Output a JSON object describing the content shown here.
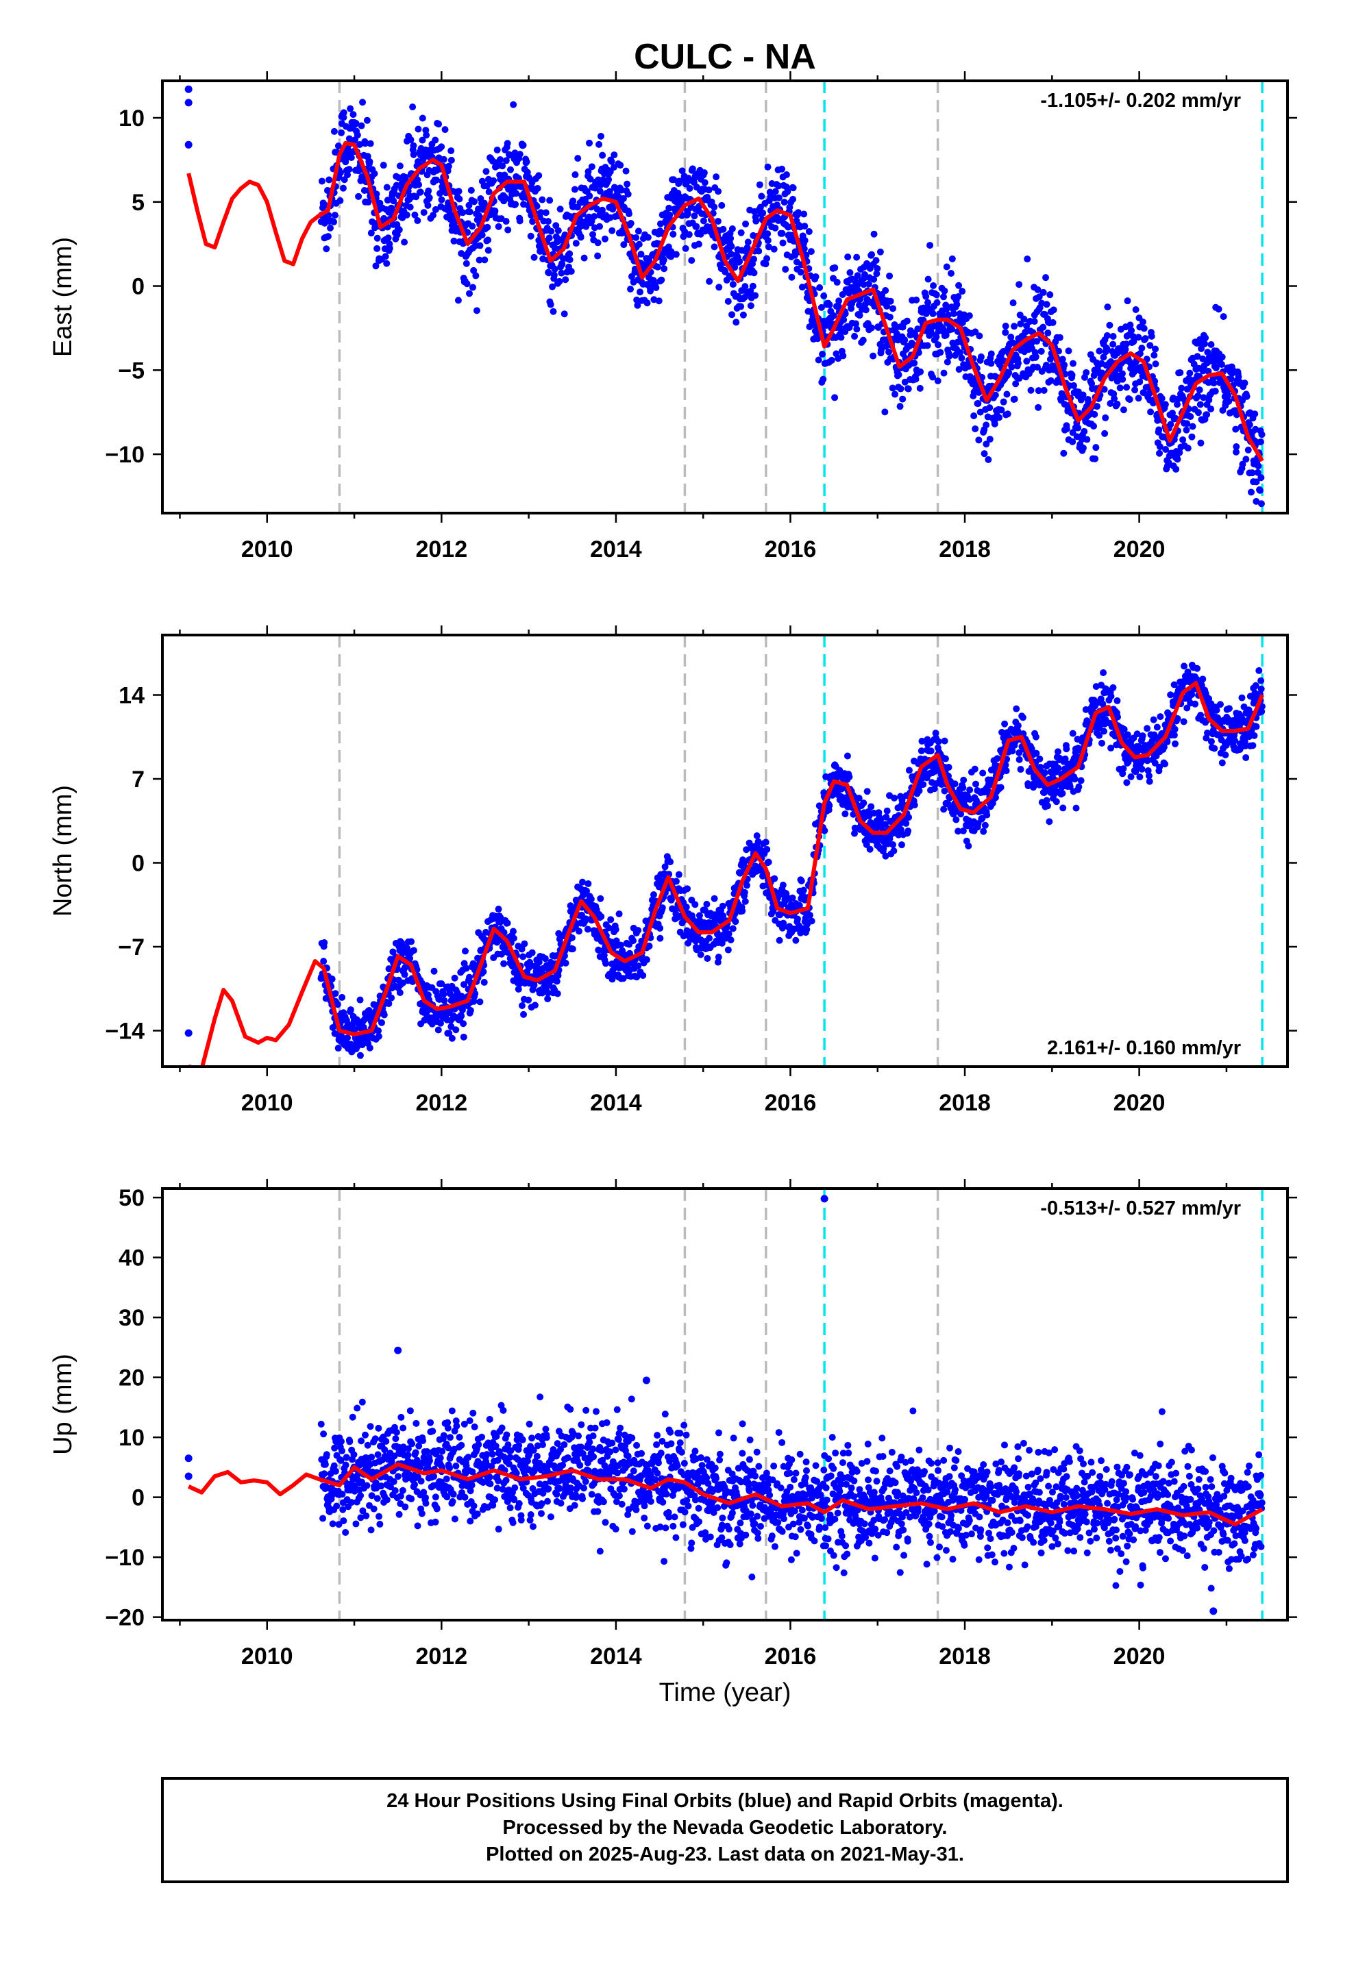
{
  "title": "CULC - NA",
  "colors": {
    "points": "#0000ff",
    "fit": "#ff0000",
    "gray_line": "#bbbbbb",
    "cyan_line": "#00e5ee",
    "frame": "#000000"
  },
  "footer": {
    "line1": "24 Hour Positions Using Final Orbits (blue) and Rapid Orbits (magenta).",
    "line2": "Processed by the Nevada Geodetic Laboratory.",
    "line3": "Plotted on 2025-Aug-23. Last data on 2021-May-31."
  },
  "chart_data": [
    {
      "type": "scatter",
      "ylabel": "East (mm)",
      "xlabel": "",
      "xlim": [
        2008.8,
        2021.7
      ],
      "ylim": [
        -13.5,
        12.2
      ],
      "xticks": [
        2010,
        2012,
        2014,
        2016,
        2018,
        2020
      ],
      "yticks": [
        -10,
        -5,
        0,
        5,
        10
      ],
      "ytick_labels": [
        "−10",
        "−5",
        "0",
        "5",
        "10"
      ],
      "rate": "-1.105+/- 0.202 mm/yr",
      "rate_position": "top-right",
      "gray_lines": [
        2010.83,
        2014.79,
        2015.72,
        2017.69
      ],
      "cyan_lines": [
        2016.39,
        2021.41
      ],
      "fit_series": {
        "name": "model",
        "x": [
          2009.1,
          2009.2,
          2009.3,
          2009.4,
          2009.5,
          2009.6,
          2009.7,
          2009.8,
          2009.9,
          2010.0,
          2010.1,
          2010.2,
          2010.3,
          2010.4,
          2010.5,
          2010.6,
          2010.7,
          2010.83,
          2010.9,
          2011.0,
          2011.15,
          2011.3,
          2011.45,
          2011.6,
          2011.75,
          2011.9,
          2012.0,
          2012.15,
          2012.3,
          2012.45,
          2012.6,
          2012.75,
          2012.95,
          2013.1,
          2013.25,
          2013.4,
          2013.55,
          2013.7,
          2013.85,
          2014.0,
          2014.15,
          2014.3,
          2014.45,
          2014.6,
          2014.79,
          2014.95,
          2015.1,
          2015.25,
          2015.4,
          2015.55,
          2015.72,
          2015.85,
          2016.0,
          2016.15,
          2016.39,
          2016.5,
          2016.65,
          2016.8,
          2016.95,
          2017.1,
          2017.25,
          2017.4,
          2017.55,
          2017.69,
          2017.8,
          2017.95,
          2018.1,
          2018.25,
          2018.4,
          2018.55,
          2018.7,
          2018.85,
          2019.0,
          2019.15,
          2019.3,
          2019.45,
          2019.6,
          2019.75,
          2019.9,
          2020.05,
          2020.2,
          2020.35,
          2020.5,
          2020.65,
          2020.8,
          2020.95,
          2021.1,
          2021.25,
          2021.41
        ],
        "y": [
          6.7,
          4.5,
          2.5,
          2.3,
          3.8,
          5.2,
          5.8,
          6.2,
          6.0,
          5.0,
          3.2,
          1.5,
          1.3,
          2.8,
          3.8,
          4.2,
          4.5,
          7.8,
          8.5,
          8.4,
          6.5,
          3.5,
          4.0,
          6.0,
          7.0,
          7.5,
          7.2,
          4.5,
          2.5,
          3.5,
          5.5,
          6.2,
          6.2,
          3.8,
          1.5,
          2.2,
          4.2,
          4.8,
          5.2,
          5.0,
          3.0,
          0.5,
          1.5,
          3.5,
          4.8,
          5.2,
          4.0,
          1.5,
          0.3,
          2.0,
          4.0,
          4.5,
          4.2,
          1.5,
          -3.6,
          -2.5,
          -0.8,
          -0.5,
          -0.2,
          -2.5,
          -4.8,
          -4.2,
          -2.2,
          -2.0,
          -2.0,
          -2.5,
          -4.8,
          -6.8,
          -5.5,
          -3.8,
          -3.2,
          -2.8,
          -3.5,
          -6.0,
          -8.0,
          -7.2,
          -5.5,
          -4.5,
          -4.0,
          -4.5,
          -6.8,
          -9.2,
          -7.5,
          -5.8,
          -5.3,
          -5.2,
          -6.5,
          -9.0,
          -10.4
        ]
      },
      "pre_points": {
        "x": [
          2009.1,
          2009.1,
          2009.1
        ],
        "y": [
          11.7,
          10.9,
          8.4
        ]
      }
    },
    {
      "type": "scatter",
      "ylabel": "North (mm)",
      "xlabel": "",
      "xlim": [
        2008.8,
        2021.7
      ],
      "ylim": [
        -17.0,
        19.0
      ],
      "xticks": [
        2010,
        2012,
        2014,
        2016,
        2018,
        2020
      ],
      "yticks": [
        -14,
        -7,
        0,
        7,
        14
      ],
      "ytick_labels": [
        "−14",
        "−7",
        "0",
        "7",
        "14"
      ],
      "rate": "2.161+/- 0.160 mm/yr",
      "rate_position": "bottom-right",
      "gray_lines": [
        2010.83,
        2014.79,
        2015.72,
        2017.69
      ],
      "cyan_lines": [
        2016.39,
        2021.41
      ],
      "fit_series": {
        "name": "model",
        "x": [
          2009.1,
          2009.25,
          2009.4,
          2009.5,
          2009.6,
          2009.75,
          2009.9,
          2010.0,
          2010.1,
          2010.25,
          2010.4,
          2010.55,
          2010.65,
          2010.83,
          2011.0,
          2011.2,
          2011.35,
          2011.5,
          2011.65,
          2011.8,
          2011.95,
          2012.1,
          2012.3,
          2012.45,
          2012.6,
          2012.75,
          2012.95,
          2013.1,
          2013.3,
          2013.45,
          2013.6,
          2013.75,
          2013.95,
          2014.1,
          2014.3,
          2014.45,
          2014.6,
          2014.79,
          2014.95,
          2015.1,
          2015.3,
          2015.45,
          2015.6,
          2015.72,
          2015.85,
          2016.0,
          2016.2,
          2016.39,
          2016.5,
          2016.65,
          2016.8,
          2016.95,
          2017.1,
          2017.3,
          2017.5,
          2017.69,
          2017.8,
          2017.95,
          2018.1,
          2018.3,
          2018.5,
          2018.65,
          2018.8,
          2018.95,
          2019.1,
          2019.3,
          2019.5,
          2019.65,
          2019.8,
          2019.95,
          2020.1,
          2020.3,
          2020.5,
          2020.65,
          2020.8,
          2020.95,
          2021.1,
          2021.25,
          2021.41
        ],
        "y": [
          -17.0,
          -17.2,
          -13.0,
          -10.6,
          -11.5,
          -14.5,
          -15.0,
          -14.6,
          -14.8,
          -13.5,
          -10.8,
          -8.2,
          -8.8,
          -14.0,
          -14.3,
          -14.0,
          -11.0,
          -7.8,
          -8.5,
          -11.5,
          -12.2,
          -12.0,
          -11.5,
          -8.5,
          -5.5,
          -6.5,
          -9.5,
          -9.8,
          -9.0,
          -6.0,
          -3.2,
          -4.5,
          -7.5,
          -8.2,
          -7.5,
          -4.0,
          -1.2,
          -4.5,
          -5.8,
          -5.8,
          -4.8,
          -1.5,
          0.8,
          -0.5,
          -3.8,
          -4.2,
          -3.8,
          5.0,
          6.8,
          6.5,
          3.5,
          2.5,
          2.5,
          4.0,
          8.0,
          9.0,
          6.5,
          4.5,
          4.2,
          5.5,
          10.2,
          10.5,
          7.8,
          6.5,
          7.0,
          8.0,
          12.5,
          13.0,
          10.0,
          8.8,
          9.0,
          10.5,
          14.2,
          15.0,
          12.0,
          11.0,
          11.0,
          11.2,
          14.0
        ]
      },
      "pre_points": {
        "x": [
          2009.1
        ],
        "y": [
          -14.2
        ]
      }
    },
    {
      "type": "scatter",
      "ylabel": "Up (mm)",
      "xlabel": "Time (year)",
      "xlim": [
        2008.8,
        2021.7
      ],
      "ylim": [
        -20.5,
        51.5
      ],
      "xticks": [
        2010,
        2012,
        2014,
        2016,
        2018,
        2020
      ],
      "yticks": [
        -20,
        -10,
        0,
        10,
        20,
        30,
        40,
        50
      ],
      "ytick_labels": [
        "−20",
        "−10",
        "0",
        "10",
        "20",
        "30",
        "40",
        "50"
      ],
      "rate": "-0.513+/- 0.527 mm/yr",
      "rate_position": "top-right",
      "gray_lines": [
        2010.83,
        2014.79,
        2015.72,
        2017.69
      ],
      "cyan_lines": [
        2016.39,
        2021.41
      ],
      "fit_series": {
        "name": "model",
        "x": [
          2009.1,
          2009.25,
          2009.4,
          2009.55,
          2009.7,
          2009.85,
          2010.0,
          2010.15,
          2010.3,
          2010.45,
          2010.6,
          2010.83,
          2011.0,
          2011.2,
          2011.5,
          2011.8,
          2012.0,
          2012.3,
          2012.6,
          2012.9,
          2013.2,
          2013.5,
          2013.8,
          2014.1,
          2014.4,
          2014.6,
          2014.79,
          2015.0,
          2015.3,
          2015.6,
          2015.9,
          2016.2,
          2016.39,
          2016.6,
          2016.9,
          2017.2,
          2017.5,
          2017.8,
          2018.1,
          2018.4,
          2018.7,
          2019.0,
          2019.3,
          2019.6,
          2019.9,
          2020.2,
          2020.5,
          2020.8,
          2021.1,
          2021.41
        ],
        "y": [
          1.8,
          0.8,
          3.5,
          4.2,
          2.5,
          2.8,
          2.5,
          0.5,
          2.0,
          3.8,
          3.0,
          2.0,
          5.0,
          3.0,
          5.5,
          4.0,
          4.5,
          3.0,
          4.5,
          3.0,
          3.5,
          4.5,
          3.0,
          3.0,
          1.5,
          3.0,
          2.5,
          0.5,
          -1.0,
          0.5,
          -1.5,
          -1.0,
          -2.5,
          -0.5,
          -2.0,
          -1.5,
          -1.0,
          -2.0,
          -1.0,
          -2.5,
          -1.5,
          -2.5,
          -1.5,
          -2.0,
          -2.8,
          -2.0,
          -3.0,
          -2.5,
          -4.5,
          -2.0
        ]
      },
      "pre_points": {
        "x": [
          2009.1,
          2009.1
        ],
        "y": [
          6.5,
          3.5
        ]
      },
      "outlier_points": {
        "x": [
          2016.39,
          2011.5,
          2014.35,
          2020.85
        ],
        "y": [
          49.8,
          24.5,
          19.5,
          -19.0
        ]
      }
    }
  ]
}
